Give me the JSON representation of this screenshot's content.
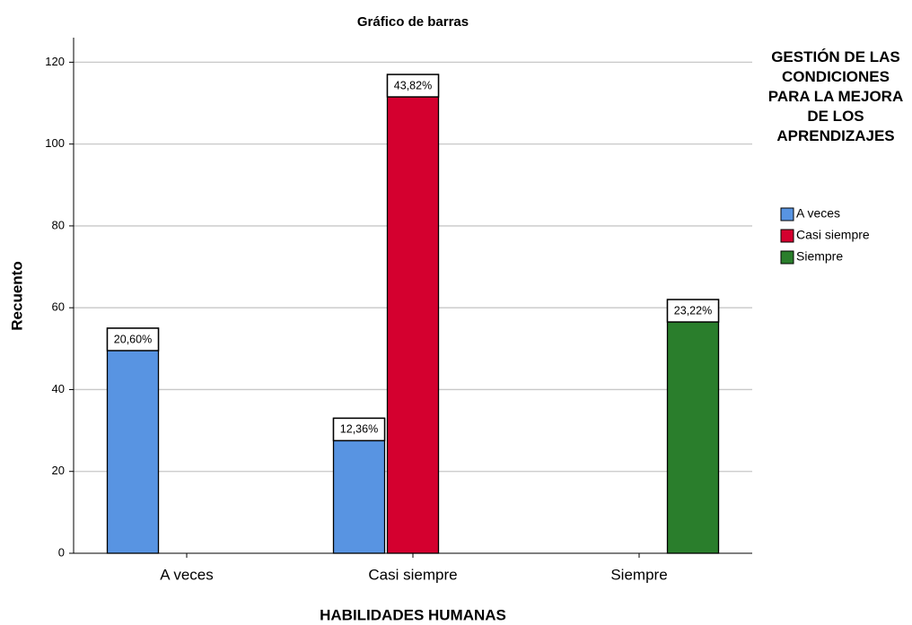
{
  "chart_data": {
    "type": "bar",
    "title": "Gráfico de barras",
    "x_label": "HABILIDADES HUMANAS",
    "y_label": "Recuento",
    "legend_title": "GESTIÓN DE LAS CONDICIONES PARA LA MEJORA DE LOS APRENDIZAJES",
    "categories": [
      "A  veces",
      "Casi siempre",
      "Siempre"
    ],
    "series": [
      {
        "name": "A  veces",
        "color": "#5894e2",
        "values": [
          55,
          33,
          null
        ],
        "value_labels": [
          "20,60%",
          "12,36%",
          null
        ]
      },
      {
        "name": "Casi siempre",
        "color": "#d4002f",
        "values": [
          null,
          117,
          null
        ],
        "value_labels": [
          null,
          "43,82%",
          null
        ]
      },
      {
        "name": "Siempre",
        "color": "#2a7e2c",
        "values": [
          null,
          null,
          62
        ],
        "value_labels": [
          null,
          null,
          "23,22%"
        ]
      }
    ],
    "ylim": [
      0,
      126
    ],
    "yticks": [
      0,
      20,
      40,
      60,
      80,
      100,
      120
    ],
    "grid": true,
    "legend": "right"
  }
}
